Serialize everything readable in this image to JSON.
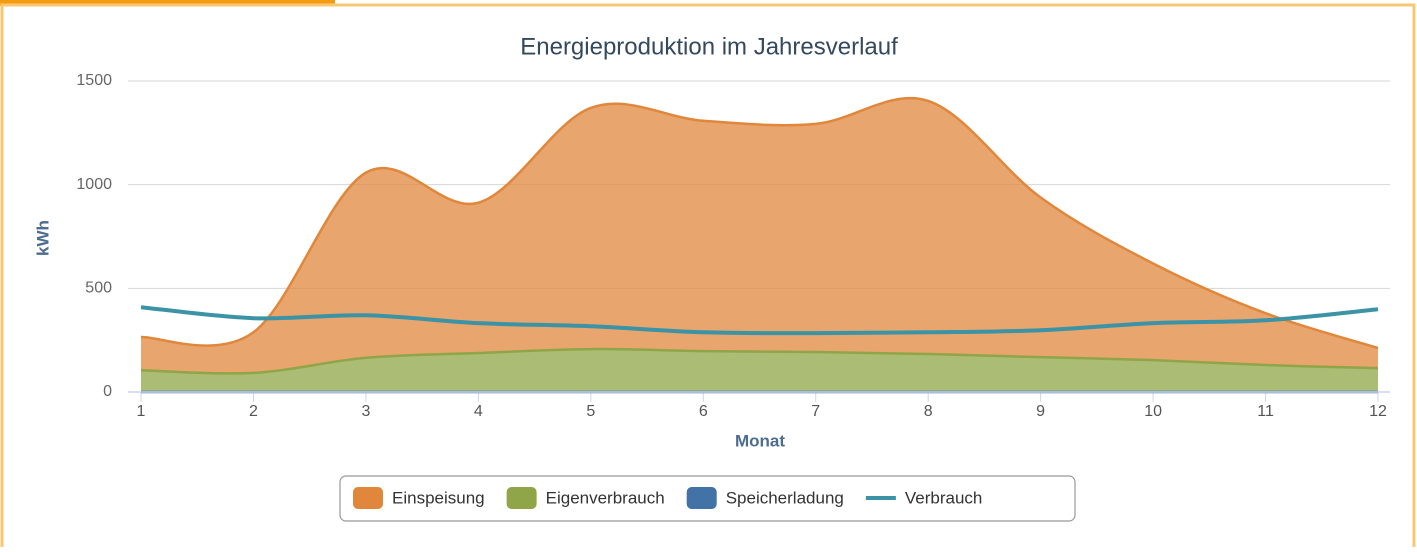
{
  "chart_data": {
    "type": "area",
    "stacked": true,
    "title": "Energieproduktion im Jahresverlauf",
    "x_label": "Monat",
    "y_label": "kWh",
    "x": [
      1,
      2,
      3,
      4,
      5,
      6,
      7,
      8,
      9,
      10,
      11,
      12
    ],
    "xlim": [
      1,
      12
    ],
    "xticks": [
      1,
      2,
      3,
      4,
      5,
      6,
      7,
      8,
      9,
      10,
      11,
      12
    ],
    "ylim": [
      0,
      1500
    ],
    "yticks": [
      0,
      500,
      1000,
      1500
    ],
    "grid": true,
    "series": [
      {
        "name": "Einspeisung",
        "color": "#e0873c",
        "type": "area",
        "values": [
          160,
          196,
          893,
          725,
          1163,
          1111,
          1100,
          1221,
          770,
          466,
          250,
          97
        ]
      },
      {
        "name": "Eigenverbrauch",
        "color": "#8fa547",
        "type": "area",
        "values": [
          105,
          92,
          165,
          188,
          207,
          197,
          193,
          183,
          168,
          154,
          130,
          115
        ]
      },
      {
        "name": "Speicherladung",
        "color": "#4372a6",
        "type": "area",
        "values": [
          0,
          0,
          0,
          0,
          0,
          0,
          0,
          0,
          0,
          0,
          0,
          0
        ]
      },
      {
        "name": "Verbrauch",
        "color": "#3b93a5",
        "type": "line",
        "values": [
          409,
          356,
          370,
          332,
          317,
          288,
          284,
          288,
          298,
          332,
          346,
          399
        ]
      }
    ]
  }
}
